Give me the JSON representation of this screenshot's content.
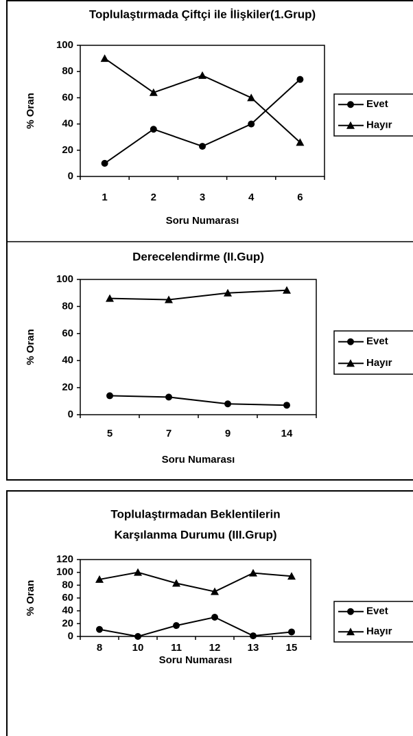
{
  "chart_data": [
    {
      "type": "line",
      "title": [
        "Toplulaştırmada Çiftçi ile İlişkiler(1.Grup)"
      ],
      "x_label": "Soru Numarası",
      "y_label": "% Oran",
      "categories": [
        "1",
        "2",
        "3",
        "4",
        "6"
      ],
      "series": [
        {
          "name": "Evet",
          "color": "#000000",
          "marker": "circle",
          "values": [
            10,
            36,
            23,
            40,
            74
          ]
        },
        {
          "name": "Hayır",
          "color": "#000000",
          "marker": "triangle",
          "values": [
            90,
            64,
            77,
            60,
            26
          ]
        }
      ],
      "ylim": [
        0,
        100
      ],
      "yticks": [
        0,
        20,
        40,
        60,
        80,
        100
      ],
      "legend": "right"
    },
    {
      "type": "line",
      "title": [
        "Derecelendirme (II.Gup)"
      ],
      "x_label": "Soru Numarası",
      "y_label": "% Oran",
      "categories": [
        "5",
        "7",
        "9",
        "14"
      ],
      "series": [
        {
          "name": "Evet",
          "color": "#000000",
          "marker": "circle",
          "values": [
            14,
            13,
            8,
            7
          ]
        },
        {
          "name": "Hayır",
          "color": "#000000",
          "marker": "triangle",
          "values": [
            86,
            85,
            90,
            92
          ]
        }
      ],
      "ylim": [
        0,
        100
      ],
      "yticks": [
        0,
        20,
        40,
        60,
        80,
        100
      ],
      "legend": "right"
    },
    {
      "type": "line",
      "title": [
        "Toplulaştırmadan Beklentilerin",
        "Karşılanma Durumu (III.Grup)"
      ],
      "x_label": "Soru Numarası",
      "y_label": "% Oran",
      "categories": [
        "8",
        "10",
        "11",
        "12",
        "13",
        "15"
      ],
      "series": [
        {
          "name": "Evet",
          "color": "#000000",
          "marker": "circle",
          "values": [
            11,
            0,
            17,
            30,
            1,
            7
          ]
        },
        {
          "name": "Hayır",
          "color": "#000000",
          "marker": "triangle",
          "values": [
            89,
            100,
            83,
            70,
            99,
            94
          ]
        }
      ],
      "ylim": [
        0,
        120
      ],
      "yticks": [
        0,
        20,
        40,
        60,
        80,
        100,
        120
      ],
      "legend": "right"
    }
  ]
}
